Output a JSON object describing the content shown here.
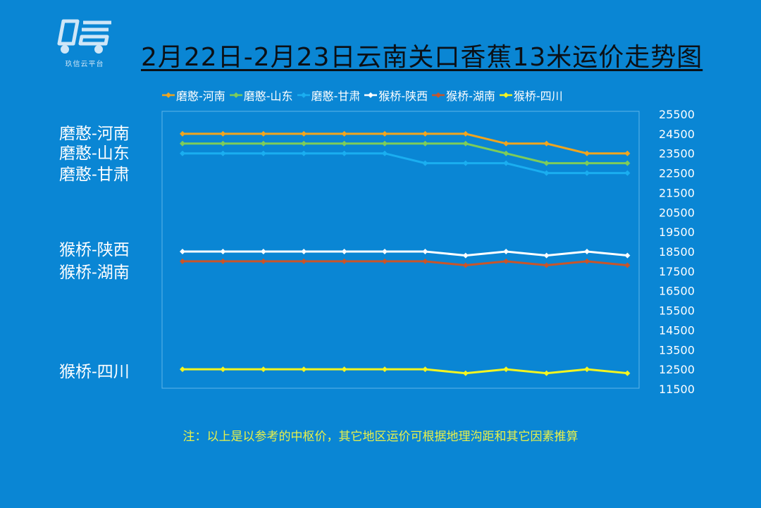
{
  "logo": {
    "caption": "玖信云平台",
    "icon": "truck-logo-icon"
  },
  "chart_data": {
    "type": "line",
    "title": "2月22日-2月23日云南关口香蕉13米运价走势图",
    "xlabel": "",
    "ylabel": "",
    "ylim": [
      11500,
      25500
    ],
    "yticks": [
      25500,
      24500,
      23500,
      22500,
      21500,
      20500,
      19500,
      18500,
      17500,
      16500,
      15500,
      14500,
      13500,
      12500,
      11500
    ],
    "grid": false,
    "legend_position": "top",
    "x": [
      1,
      2,
      3,
      4,
      5,
      6,
      7,
      8,
      9,
      10,
      11,
      12
    ],
    "series": [
      {
        "name": "磨憨-河南",
        "color": "#f0a51e",
        "values": [
          24500,
          24500,
          24500,
          24500,
          24500,
          24500,
          24500,
          24500,
          24000,
          24000,
          23500,
          23500
        ]
      },
      {
        "name": "磨憨-山东",
        "color": "#7dcc5a",
        "values": [
          24000,
          24000,
          24000,
          24000,
          24000,
          24000,
          24000,
          24000,
          23500,
          23000,
          23000,
          23000
        ]
      },
      {
        "name": "磨憨-甘肃",
        "color": "#1aaef0",
        "values": [
          23500,
          23500,
          23500,
          23500,
          23500,
          23500,
          23000,
          23000,
          23000,
          22500,
          22500,
          22500
        ]
      },
      {
        "name": "猴桥-陕西",
        "color": "#ffffff",
        "values": [
          18500,
          18500,
          18500,
          18500,
          18500,
          18500,
          18500,
          18300,
          18500,
          18300,
          18500,
          18300
        ]
      },
      {
        "name": "猴桥-湖南",
        "color": "#c8552a",
        "values": [
          18000,
          18000,
          18000,
          18000,
          18000,
          18000,
          18000,
          17800,
          18000,
          17800,
          18000,
          17800
        ]
      },
      {
        "name": "猴桥-四川",
        "color": "#f4f520",
        "values": [
          12500,
          12500,
          12500,
          12500,
          12500,
          12500,
          12500,
          12300,
          12500,
          12300,
          12500,
          12300
        ]
      }
    ],
    "annotations": [
      "磨憨-河南",
      "磨憨-山东",
      "磨憨-甘肃",
      "猴桥-陕西",
      "猴桥-湖南",
      "猴桥-四川"
    ]
  },
  "note": "注：以上是以参考的中枢价，其它地区运价可根据地理沟距和其它因素推算"
}
